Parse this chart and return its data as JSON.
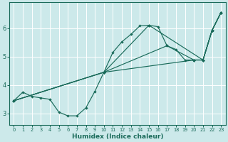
{
  "bg_color": "#cce9ea",
  "grid_color": "#ffffff",
  "line_color": "#1a6b5a",
  "xlabel": "Humidex (Indice chaleur)",
  "xlim": [
    -0.5,
    23.5
  ],
  "ylim": [
    2.6,
    6.9
  ],
  "yticks": [
    3,
    4,
    5,
    6
  ],
  "xticks": [
    0,
    1,
    2,
    3,
    4,
    5,
    6,
    7,
    8,
    9,
    10,
    11,
    12,
    13,
    14,
    15,
    16,
    17,
    18,
    19,
    20,
    21,
    22,
    23
  ],
  "curve1_x": [
    0,
    1,
    2,
    3,
    4,
    5,
    6,
    7,
    8,
    9,
    10,
    11,
    12,
    13,
    14,
    15,
    16,
    17,
    18,
    19,
    20,
    21,
    22,
    23
  ],
  "curve1_y": [
    3.45,
    3.75,
    3.6,
    3.55,
    3.5,
    3.05,
    2.92,
    2.92,
    3.2,
    3.78,
    4.45,
    5.15,
    5.52,
    5.78,
    6.08,
    6.1,
    6.05,
    5.38,
    5.25,
    4.88,
    4.88,
    4.88,
    5.92,
    6.55
  ],
  "curve2_x": [
    0,
    10,
    15,
    21,
    22,
    23
  ],
  "curve2_y": [
    3.45,
    4.45,
    6.1,
    4.88,
    5.92,
    6.55
  ],
  "curve3_x": [
    0,
    10,
    17,
    20,
    21,
    22,
    23
  ],
  "curve3_y": [
    3.45,
    4.45,
    5.38,
    4.88,
    4.88,
    5.92,
    6.55
  ],
  "curve4_x": [
    0,
    10,
    20,
    21,
    22,
    23
  ],
  "curve4_y": [
    3.45,
    4.45,
    4.88,
    4.88,
    5.92,
    6.55
  ]
}
